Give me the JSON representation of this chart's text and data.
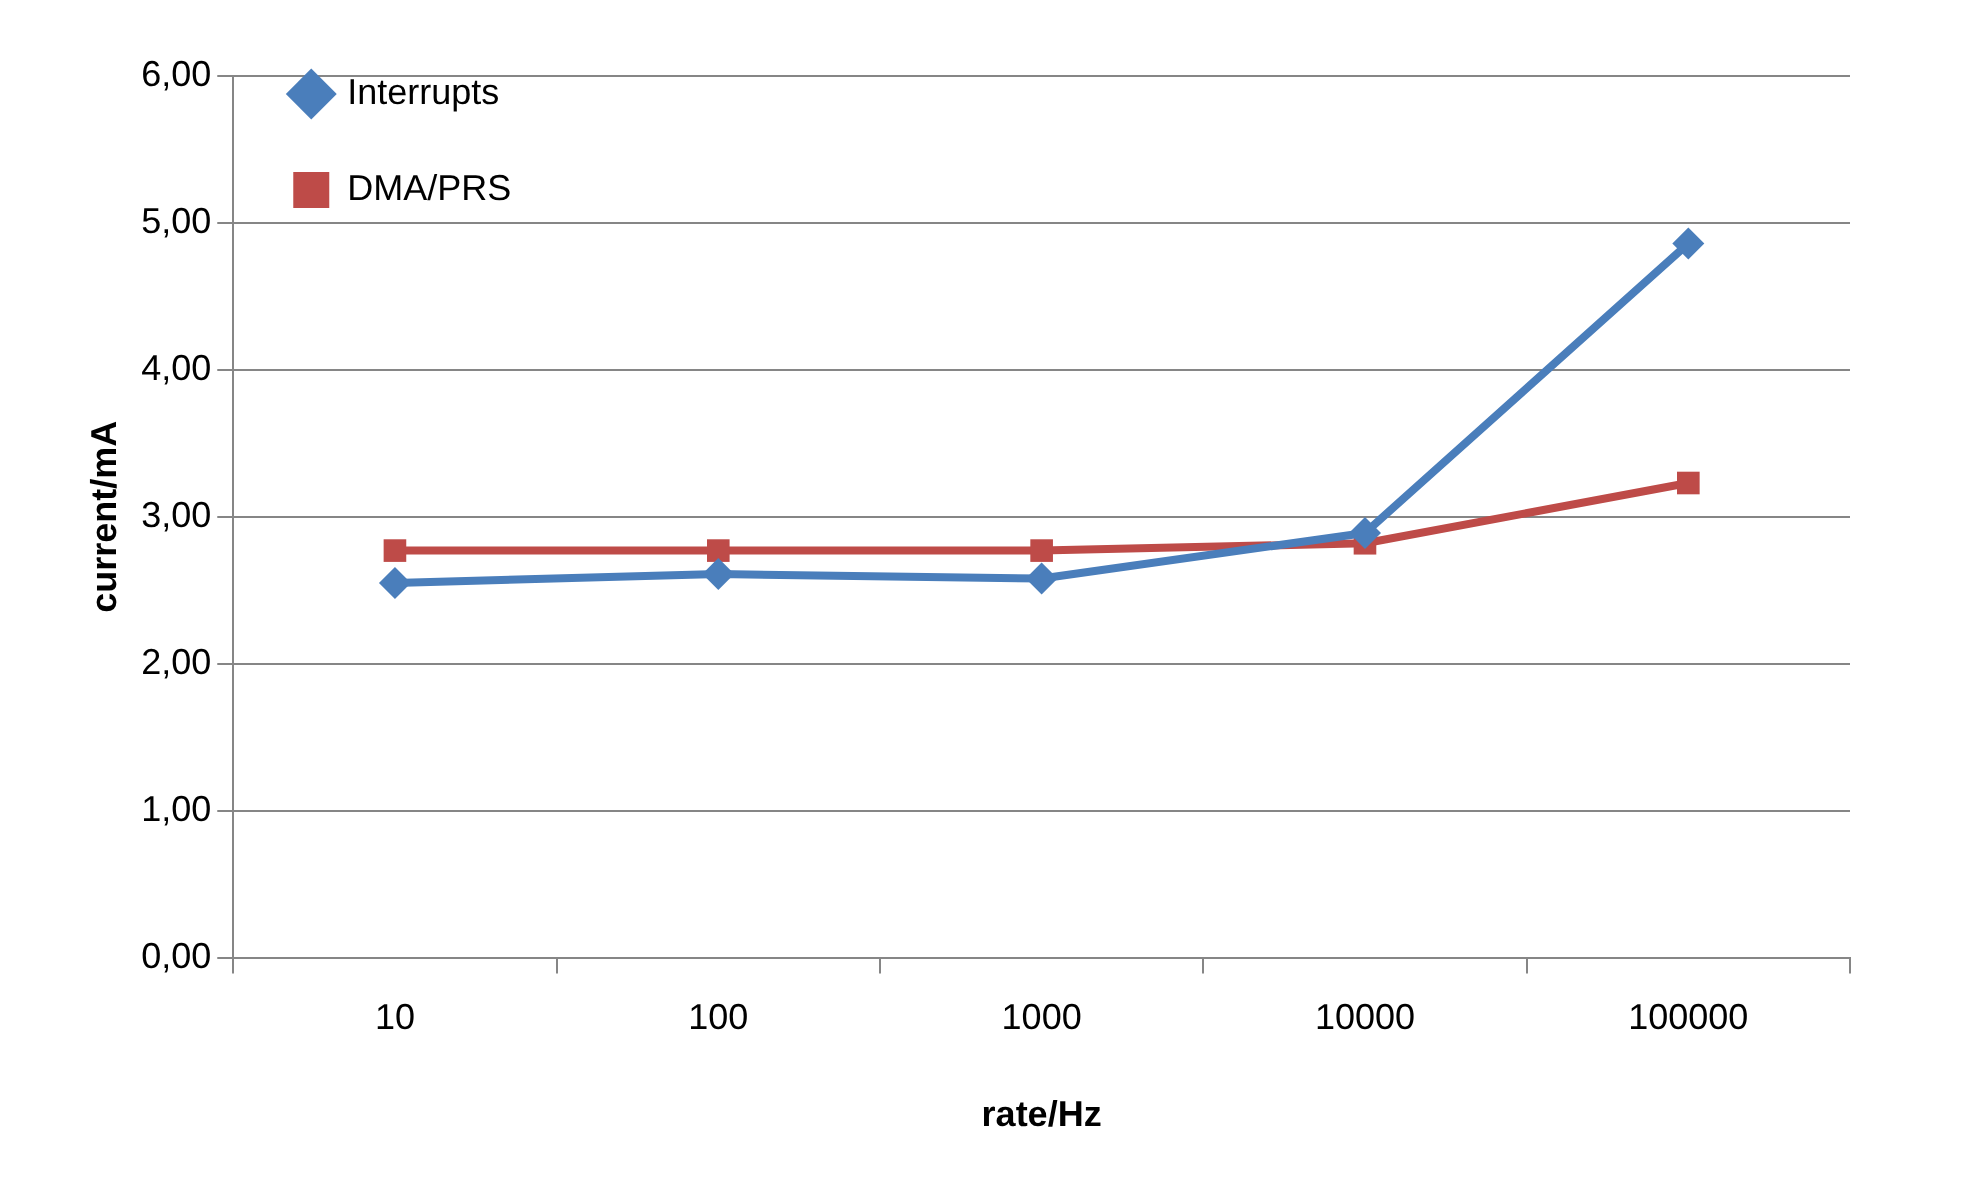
{
  "chart_data": {
    "type": "line",
    "xlabel": "rate/Hz",
    "ylabel": "current/mA",
    "categories": [
      "10",
      "100",
      "1000",
      "10000",
      "100000"
    ],
    "series": [
      {
        "name": "Interrupts",
        "color": "#4a7ebb",
        "marker": "diamond",
        "values": [
          2.55,
          2.61,
          2.58,
          2.89,
          4.86
        ]
      },
      {
        "name": "DMA/PRS",
        "color": "#be4b48",
        "marker": "square",
        "values": [
          2.77,
          2.77,
          2.77,
          2.82,
          3.23
        ]
      }
    ],
    "ylim": [
      0,
      6
    ],
    "yticks": [
      {
        "value": 0,
        "label": "0,00"
      },
      {
        "value": 1,
        "label": "1,00"
      },
      {
        "value": 2,
        "label": "2,00"
      },
      {
        "value": 3,
        "label": "3,00"
      },
      {
        "value": 4,
        "label": "4,00"
      },
      {
        "value": 5,
        "label": "5,00"
      },
      {
        "value": 6,
        "label": "6,00"
      }
    ],
    "grid": "y",
    "legend": "top left",
    "line_style": "solid"
  }
}
